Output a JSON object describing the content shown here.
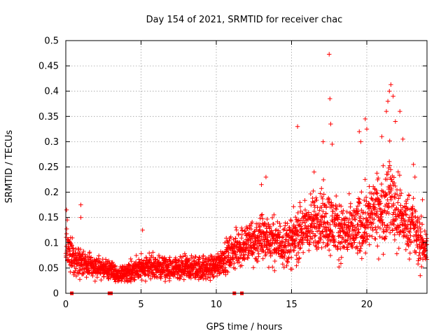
{
  "chart_data": {
    "type": "scatter",
    "title": "Day 154 of 2021, SRMTID for receiver chac",
    "xlabel": "GPS time / hours",
    "ylabel": "SRMTID / TECUs",
    "xlim": [
      0,
      24
    ],
    "ylim": [
      0,
      0.5
    ],
    "xticks": [
      0,
      5,
      10,
      15,
      20
    ],
    "xtick_labels": [
      "0",
      "5",
      "10",
      "15",
      "20"
    ],
    "yticks": [
      0,
      0.05,
      0.1,
      0.15,
      0.2,
      0.25,
      0.3,
      0.35,
      0.4,
      0.45,
      0.5
    ],
    "ytick_labels": [
      "0",
      "0.05",
      "0.1",
      "0.15",
      "0.2",
      "0.25",
      "0.3",
      "0.35",
      "0.4",
      "0.45",
      "0.5"
    ],
    "grid": true,
    "marker": "plus",
    "color": "#ff0000",
    "gap_markers": {
      "marker": "square",
      "y": 0,
      "x": [
        0.4,
        2.9,
        3.0,
        11.2,
        11.7
      ]
    },
    "envelope": {
      "x": [
        0,
        0.5,
        1,
        1.5,
        2,
        2.5,
        3,
        3.5,
        4,
        4.5,
        5,
        5.5,
        6,
        6.5,
        7,
        7.5,
        8,
        8.5,
        9,
        9.5,
        10,
        10.5,
        11,
        11.5,
        12,
        12.5,
        13,
        13.5,
        14,
        14.5,
        15,
        15.5,
        16,
        16.5,
        17,
        17.5,
        18,
        18.5,
        19,
        19.5,
        20,
        20.5,
        21,
        21.5,
        22,
        22.5,
        23,
        23.5,
        24
      ],
      "median": [
        0.09,
        0.07,
        0.06,
        0.055,
        0.05,
        0.05,
        0.045,
        0.035,
        0.04,
        0.045,
        0.05,
        0.055,
        0.05,
        0.05,
        0.045,
        0.045,
        0.05,
        0.05,
        0.05,
        0.05,
        0.055,
        0.07,
        0.08,
        0.09,
        0.1,
        0.1,
        0.11,
        0.11,
        0.1,
        0.1,
        0.1,
        0.12,
        0.13,
        0.14,
        0.15,
        0.14,
        0.13,
        0.12,
        0.12,
        0.13,
        0.15,
        0.16,
        0.16,
        0.2,
        0.16,
        0.14,
        0.14,
        0.1,
        0.09
      ],
      "spread": [
        0.04,
        0.03,
        0.03,
        0.025,
        0.025,
        0.02,
        0.02,
        0.015,
        0.02,
        0.025,
        0.025,
        0.03,
        0.025,
        0.025,
        0.025,
        0.025,
        0.025,
        0.025,
        0.025,
        0.025,
        0.025,
        0.03,
        0.035,
        0.04,
        0.045,
        0.05,
        0.05,
        0.05,
        0.045,
        0.045,
        0.05,
        0.055,
        0.06,
        0.06,
        0.065,
        0.065,
        0.06,
        0.055,
        0.06,
        0.065,
        0.07,
        0.07,
        0.075,
        0.09,
        0.08,
        0.06,
        0.06,
        0.05,
        0.04
      ]
    },
    "notable_points": [
      {
        "x": 0.05,
        "y": 0.165
      },
      {
        "x": 0.1,
        "y": 0.145
      },
      {
        "x": 1.0,
        "y": 0.175
      },
      {
        "x": 1.0,
        "y": 0.15
      },
      {
        "x": 5.1,
        "y": 0.125
      },
      {
        "x": 13.0,
        "y": 0.215
      },
      {
        "x": 13.3,
        "y": 0.23
      },
      {
        "x": 15.4,
        "y": 0.33
      },
      {
        "x": 16.5,
        "y": 0.24
      },
      {
        "x": 17.1,
        "y": 0.3
      },
      {
        "x": 17.5,
        "y": 0.473
      },
      {
        "x": 17.55,
        "y": 0.385
      },
      {
        "x": 17.6,
        "y": 0.335
      },
      {
        "x": 17.7,
        "y": 0.295
      },
      {
        "x": 19.5,
        "y": 0.32
      },
      {
        "x": 19.6,
        "y": 0.3
      },
      {
        "x": 19.9,
        "y": 0.345
      },
      {
        "x": 20.0,
        "y": 0.325
      },
      {
        "x": 21.0,
        "y": 0.31
      },
      {
        "x": 21.3,
        "y": 0.36
      },
      {
        "x": 21.4,
        "y": 0.38
      },
      {
        "x": 21.5,
        "y": 0.4
      },
      {
        "x": 21.6,
        "y": 0.413
      },
      {
        "x": 21.75,
        "y": 0.39
      },
      {
        "x": 21.9,
        "y": 0.34
      },
      {
        "x": 22.2,
        "y": 0.36
      },
      {
        "x": 22.4,
        "y": 0.305
      },
      {
        "x": 23.1,
        "y": 0.255
      },
      {
        "x": 23.2,
        "y": 0.23
      },
      {
        "x": 23.55,
        "y": 0.035
      },
      {
        "x": 23.7,
        "y": 0.185
      }
    ]
  }
}
